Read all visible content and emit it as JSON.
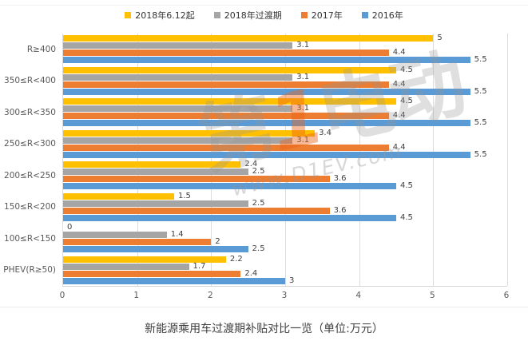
{
  "chart_data": {
    "type": "bar",
    "orientation": "horizontal",
    "title": "新能源乘用车过渡期补贴对比一览（单位:万元）",
    "categories": [
      "R≥400",
      "350≤R<400",
      "300≤R<350",
      "250≤R<300",
      "200≤R<250",
      "150≤R<200",
      "100≤R<150",
      "PHEV(R≥50)"
    ],
    "series": [
      {
        "name": "2018年6.12起",
        "color": "#FFC000",
        "values": [
          5,
          4.5,
          4.5,
          3.4,
          2.4,
          1.5,
          0,
          2.2
        ]
      },
      {
        "name": "2018年过渡期",
        "color": "#A5A5A5",
        "values": [
          3.1,
          3.1,
          3.1,
          3.1,
          2.5,
          2.5,
          1.4,
          1.7
        ]
      },
      {
        "name": "2017年",
        "color": "#ED7D31",
        "values": [
          4.4,
          4.4,
          4.4,
          4.4,
          3.6,
          3.6,
          2,
          2.4
        ]
      },
      {
        "name": "2016年",
        "color": "#5B9BD5",
        "values": [
          5.5,
          5.5,
          5.5,
          5.5,
          4.5,
          4.5,
          2.5,
          3
        ]
      }
    ],
    "x_ticks": [
      0,
      1,
      2,
      3,
      4,
      5,
      6
    ],
    "xlim": [
      0,
      6
    ],
    "grid": "vertical",
    "legend_position": "top",
    "value_labels": true
  },
  "watermark": {
    "prefix": "第",
    "accent": "1",
    "suffix": "电动",
    "sub": "www.D1EV.com"
  }
}
